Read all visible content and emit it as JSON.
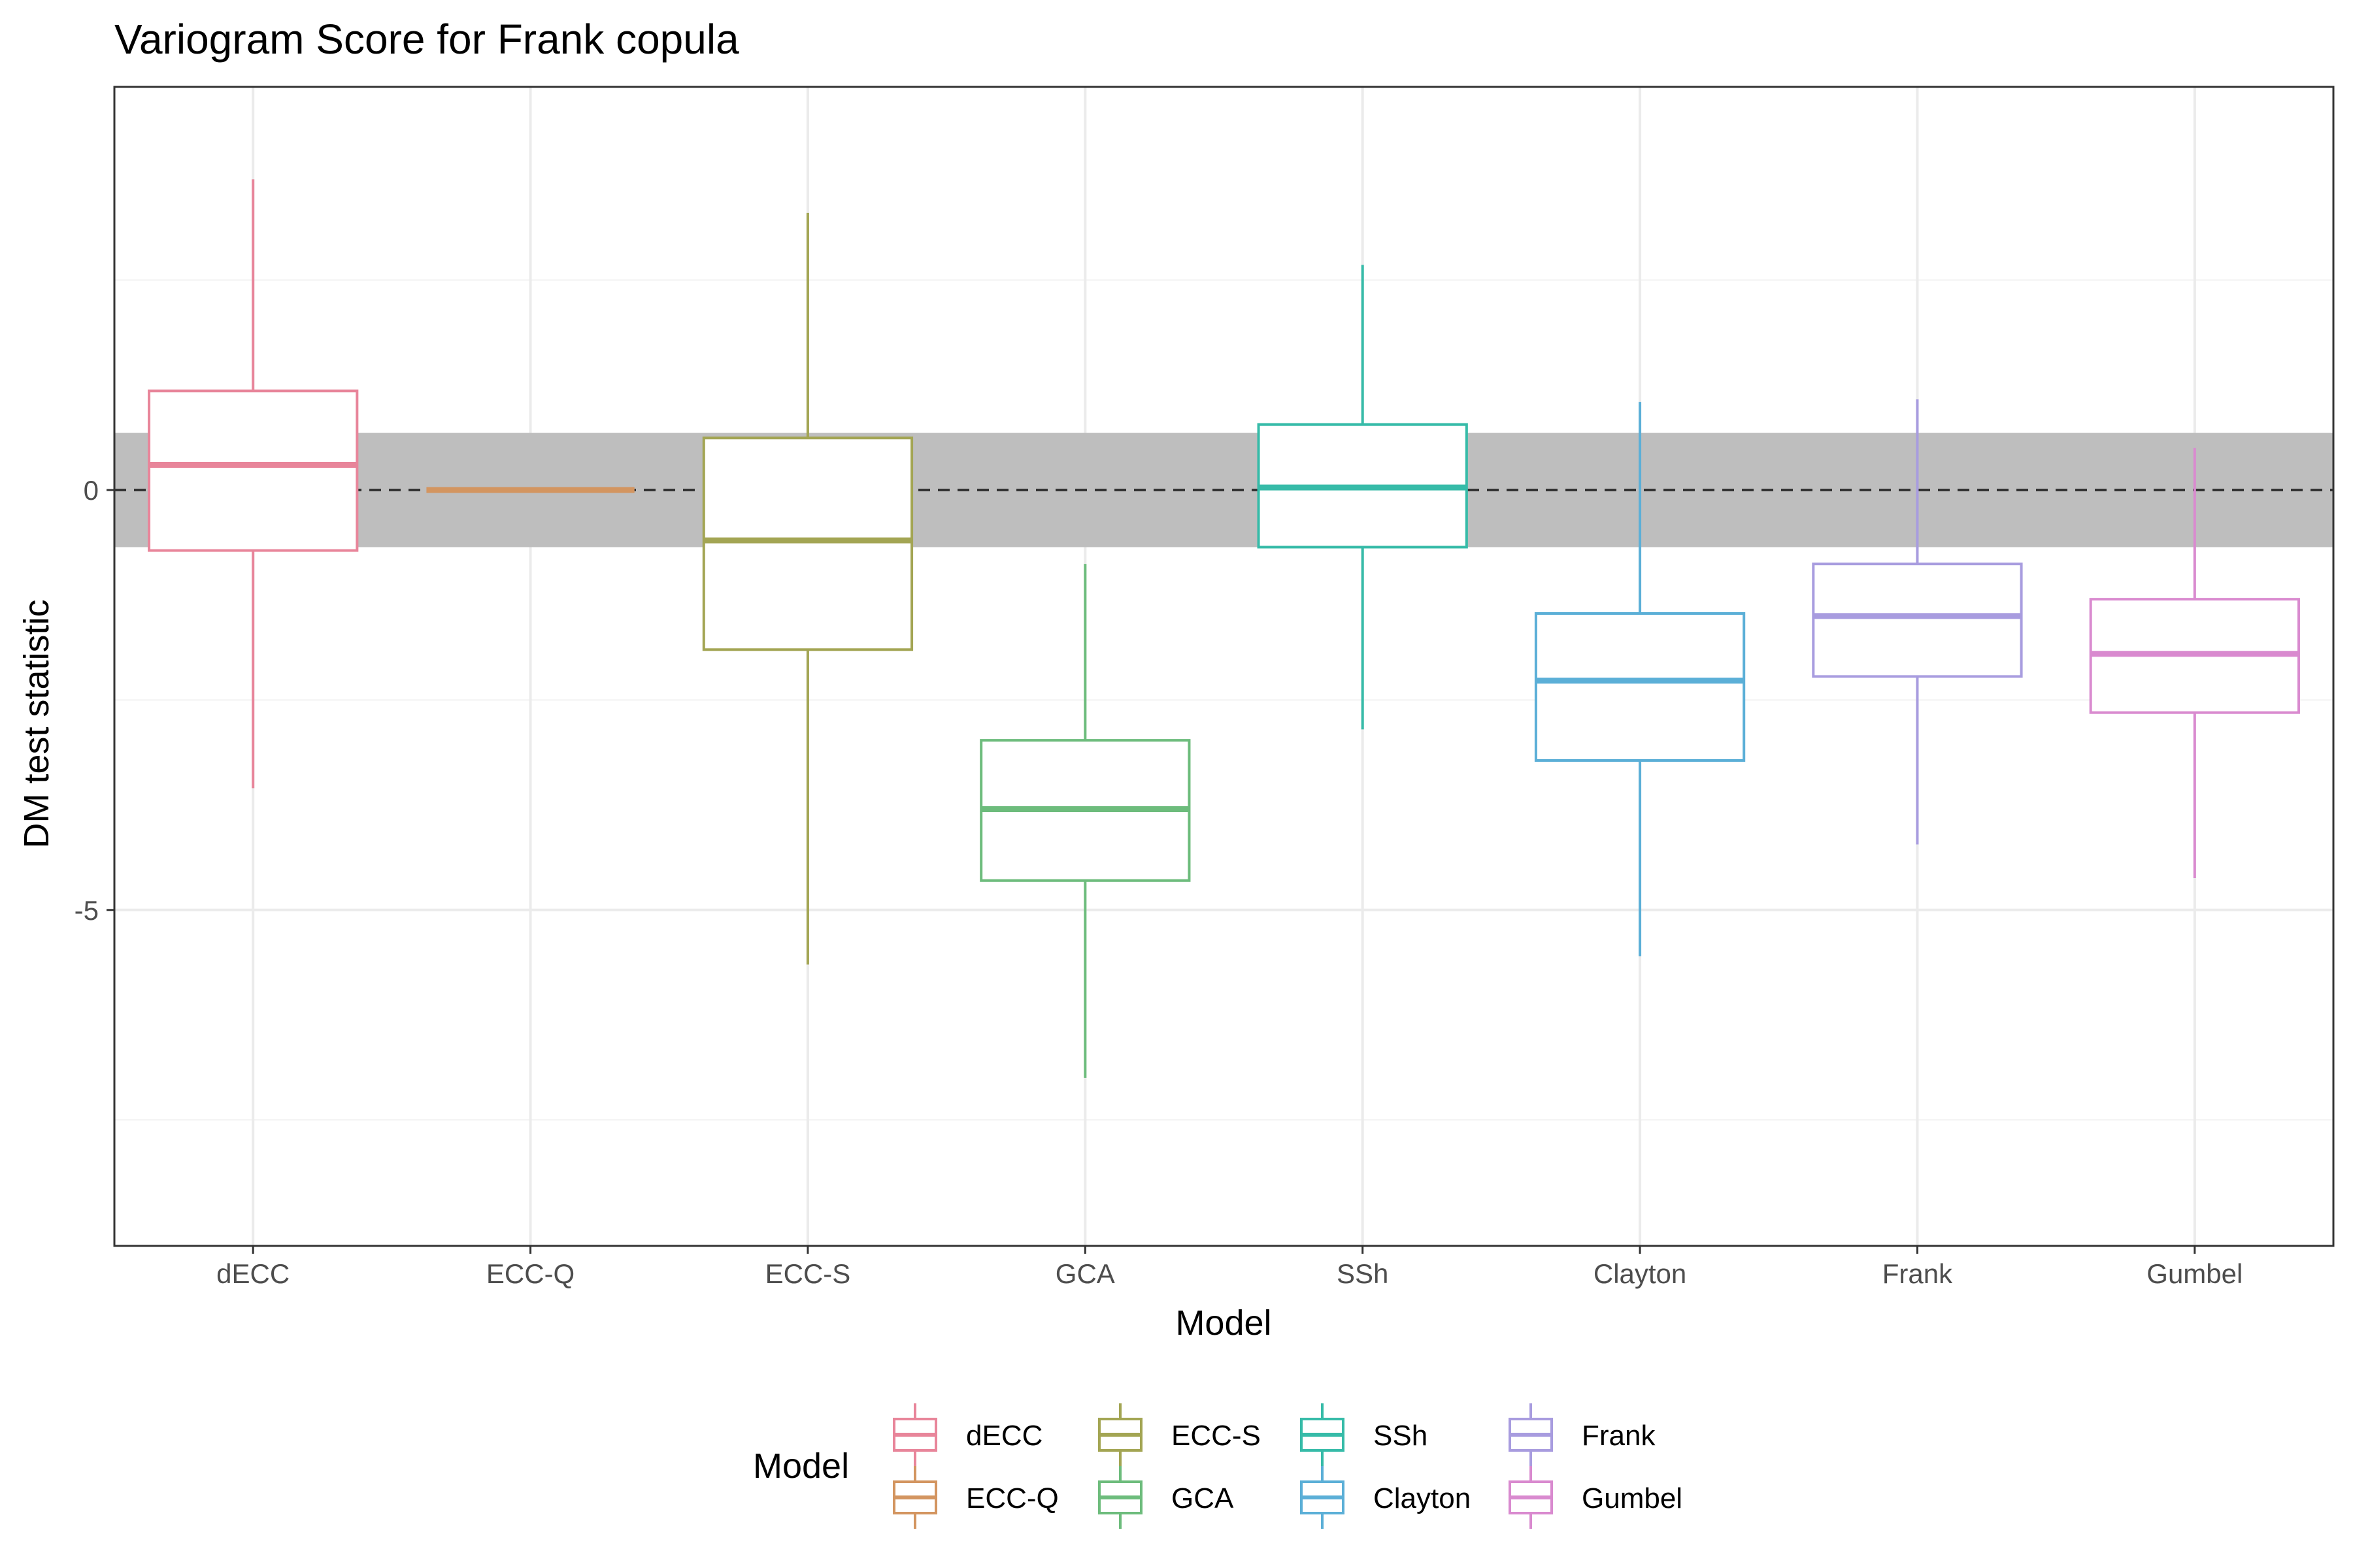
{
  "chart_data": {
    "type": "boxplot",
    "title": "Variogram Score for Frank copula",
    "xlabel": "Model",
    "ylabel": "DM test statistic",
    "ylim": [
      -9,
      4.8
    ],
    "y_ticks": [
      0,
      -5
    ],
    "y_tick_labels": [
      "0",
      "-5"
    ],
    "y_minor_gridlines": [
      2.5,
      -2.5,
      -7.5
    ],
    "grid": true,
    "band": {
      "ymin": -0.68,
      "ymax": 0.68,
      "color": "#bebebe"
    },
    "reference_line": {
      "y": 0,
      "style": "dashed",
      "color": "#333333"
    },
    "categories": [
      "dECC",
      "ECC-Q",
      "ECC-S",
      "GCA",
      "SSh",
      "Clayton",
      "Frank",
      "Gumbel"
    ],
    "series": [
      {
        "name": "dECC",
        "color": "#E8859A",
        "whisker_low": -3.55,
        "q1": -0.72,
        "median": 0.3,
        "q3": 1.18,
        "whisker_high": 3.7
      },
      {
        "name": "ECC-Q",
        "color": "#D39560",
        "whisker_low": 0.0,
        "q1": 0.0,
        "median": 0.0,
        "q3": 0.0,
        "whisker_high": 0.0
      },
      {
        "name": "ECC-S",
        "color": "#A3A553",
        "whisker_low": -5.65,
        "q1": -1.9,
        "median": -0.6,
        "q3": 0.62,
        "whisker_high": 3.3
      },
      {
        "name": "GCA",
        "color": "#6DBC7C",
        "whisker_low": -7.0,
        "q1": -4.65,
        "median": -3.8,
        "q3": -2.98,
        "whisker_high": -0.88
      },
      {
        "name": "SSh",
        "color": "#36BBA8",
        "whisker_low": -2.85,
        "q1": -0.68,
        "median": 0.03,
        "q3": 0.78,
        "whisker_high": 2.68
      },
      {
        "name": "Clayton",
        "color": "#5BAFD7",
        "whisker_low": -5.55,
        "q1": -3.22,
        "median": -2.27,
        "q3": -1.47,
        "whisker_high": 1.05
      },
      {
        "name": "Frank",
        "color": "#A89CDF",
        "whisker_low": -4.22,
        "q1": -2.22,
        "median": -1.5,
        "q3": -0.88,
        "whisker_high": 1.08
      },
      {
        "name": "Gumbel",
        "color": "#D98ACF",
        "whisker_low": -4.62,
        "q1": -2.65,
        "median": -1.95,
        "q3": -1.3,
        "whisker_high": 0.5
      }
    ],
    "legend": {
      "title": "Model",
      "placement": "bottom",
      "columns": [
        [
          "dECC",
          "ECC-Q"
        ],
        [
          "ECC-S",
          "GCA"
        ],
        [
          "SSh",
          "Clayton"
        ],
        [
          "Frank",
          "Gumbel"
        ]
      ]
    }
  }
}
